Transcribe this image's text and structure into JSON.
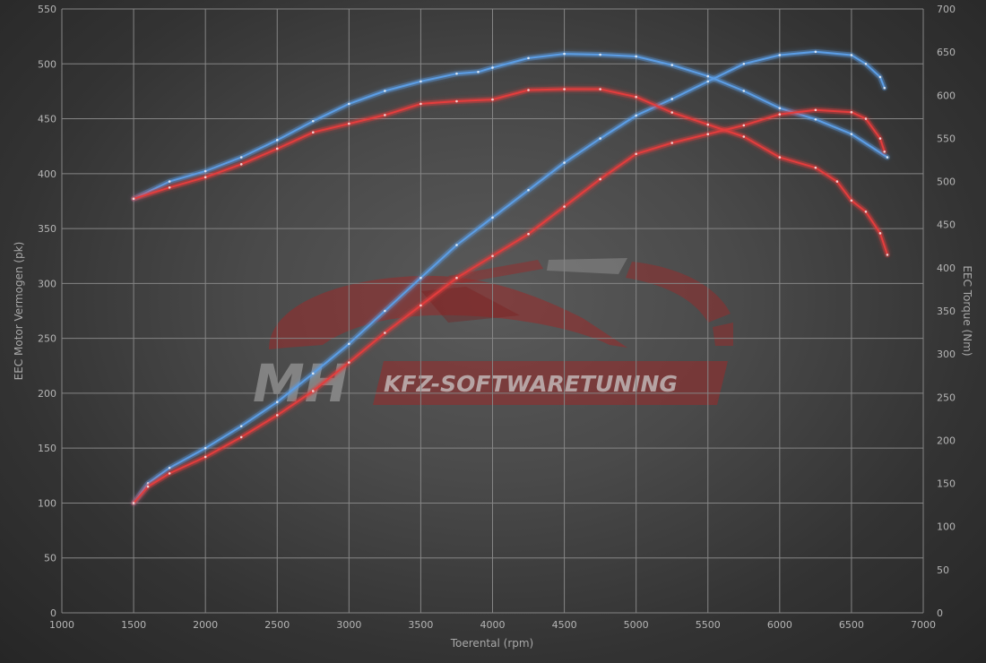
{
  "chart_data": {
    "type": "line",
    "title": "",
    "xlabel": "Toerental (rpm)",
    "ylabel": "EEC Motor Vermogen (pk)",
    "y2label": "EEC Torque (Nm)",
    "xlim": [
      1000,
      7000
    ],
    "ylim": [
      0,
      550
    ],
    "y2lim": [
      0,
      700
    ],
    "x_ticks": [
      1000,
      1500,
      2000,
      2500,
      3000,
      3500,
      4000,
      4500,
      5000,
      5500,
      6000,
      6500,
      7000
    ],
    "y_ticks": [
      0,
      50,
      100,
      150,
      200,
      250,
      300,
      350,
      400,
      450,
      500,
      550
    ],
    "y2_ticks": [
      0,
      50,
      100,
      150,
      200,
      250,
      300,
      350,
      400,
      450,
      500,
      550,
      600,
      650,
      700
    ],
    "grid": true,
    "colors": {
      "blue": "#5b9ee6",
      "red": "#e43c3c"
    },
    "series": [
      {
        "color": "blue",
        "axis": "left",
        "x": [
          1500,
          1600,
          1750,
          2000,
          2250,
          2500,
          2750,
          3000,
          3250,
          3500,
          3750,
          4000,
          4250,
          4500,
          4750,
          5000,
          5250,
          5500,
          5750,
          6000,
          6250,
          6500,
          6600,
          6700,
          6730
        ],
        "y": [
          100,
          118,
          132,
          150,
          170,
          192,
          218,
          245,
          275,
          305,
          335,
          360,
          385,
          410,
          432,
          453,
          468,
          484,
          500,
          508,
          511,
          508,
          500,
          488,
          478
        ]
      },
      {
        "color": "blue",
        "axis": "right",
        "x": [
          1500,
          1750,
          2000,
          2250,
          2500,
          2750,
          3000,
          3250,
          3500,
          3750,
          3900,
          4000,
          4250,
          4500,
          4750,
          5000,
          5250,
          5500,
          5750,
          6000,
          6250,
          6500,
          6750
        ],
        "y": [
          480,
          500,
          512,
          528,
          548,
          570,
          590,
          605,
          616,
          625,
          627,
          632,
          643,
          648,
          647,
          645,
          635,
          622,
          605,
          585,
          572,
          555,
          528
        ]
      },
      {
        "color": "red",
        "axis": "left",
        "x": [
          1500,
          1600,
          1750,
          2000,
          2250,
          2500,
          2750,
          3000,
          3250,
          3500,
          3750,
          4000,
          4250,
          4500,
          4750,
          5000,
          5250,
          5500,
          5750,
          6000,
          6250,
          6500,
          6600,
          6700,
          6730
        ],
        "y": [
          100,
          115,
          127,
          142,
          160,
          180,
          202,
          228,
          255,
          280,
          305,
          325,
          345,
          370,
          395,
          418,
          428,
          436,
          444,
          454,
          458,
          456,
          450,
          432,
          420
        ]
      },
      {
        "color": "red",
        "axis": "right",
        "x": [
          1500,
          1750,
          2000,
          2250,
          2500,
          2750,
          3000,
          3250,
          3500,
          3750,
          4000,
          4250,
          4500,
          4750,
          5000,
          5250,
          5500,
          5750,
          6000,
          6250,
          6400,
          6500,
          6600,
          6700,
          6750
        ],
        "y": [
          480,
          493,
          505,
          520,
          538,
          557,
          567,
          577,
          590,
          593,
          595,
          606,
          607,
          607,
          598,
          580,
          566,
          552,
          528,
          516,
          500,
          478,
          465,
          440,
          415
        ]
      }
    ]
  },
  "watermark": {
    "logo_letters": "MH",
    "company": "KFZ-SOFTWARETUNING"
  }
}
